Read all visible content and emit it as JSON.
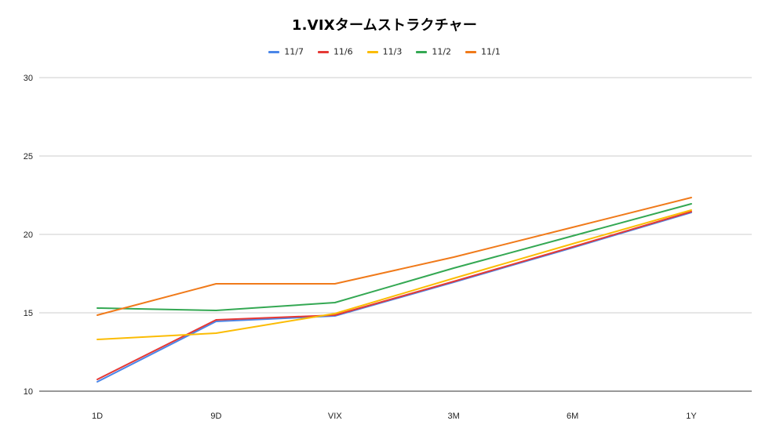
{
  "chart_data": {
    "type": "line",
    "title": "1.VIXタームストラクチャー",
    "categories": [
      "1D",
      "9D",
      "VIX",
      "3M",
      "6M",
      "1Y"
    ],
    "ylim": [
      10,
      30
    ],
    "yticks": [
      10,
      15,
      20,
      25,
      30
    ],
    "grid": true,
    "legend_position": "top",
    "series": [
      {
        "name": "11/7",
        "color": "#4a86e8",
        "values": [
          10.6,
          14.45,
          14.8,
          16.95,
          19.15,
          21.4
        ]
      },
      {
        "name": "11/6",
        "color": "#e53935",
        "values": [
          10.75,
          14.55,
          14.85,
          17.0,
          19.2,
          21.45
        ]
      },
      {
        "name": "11/3",
        "color": "#fbbc04",
        "values": [
          13.3,
          13.7,
          14.95,
          17.2,
          19.4,
          21.55
        ]
      },
      {
        "name": "11/2",
        "color": "#34a853",
        "values": [
          15.3,
          15.15,
          15.65,
          17.85,
          19.9,
          21.95
        ]
      },
      {
        "name": "11/1",
        "color": "#f07a1a",
        "values": [
          14.85,
          16.85,
          16.85,
          18.55,
          20.45,
          22.35
        ]
      }
    ]
  }
}
